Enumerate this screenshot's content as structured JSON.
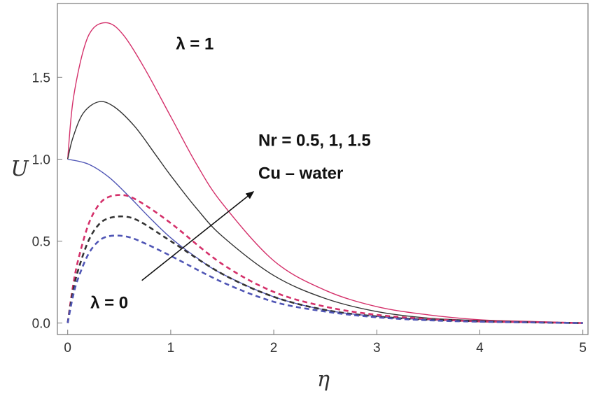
{
  "chart_data": {
    "type": "line",
    "xlabel": "η",
    "ylabel": "U",
    "xlim": [
      -0.1,
      5.05
    ],
    "ylim": [
      -0.07,
      1.95
    ],
    "x_ticks": [
      0,
      1,
      2,
      3,
      4,
      5
    ],
    "x_tick_labels": [
      "0",
      "1",
      "2",
      "3",
      "4",
      "5"
    ],
    "y_ticks": [
      0.0,
      0.5,
      1.0,
      1.5
    ],
    "y_tick_labels": [
      "0.0",
      "0.5",
      "1.0",
      "1.5"
    ],
    "grid": false,
    "colors": {
      "pink": "#d4306a",
      "black": "#333333",
      "blue": "#4f55b5"
    },
    "series": [
      {
        "style": "solid",
        "color": "#d4306a",
        "x": [
          0,
          0.05,
          0.15,
          0.25,
          0.4,
          0.55,
          0.75,
          1,
          1.25,
          1.5,
          2,
          2.5,
          3,
          3.5,
          4,
          4.5,
          5
        ],
        "values": [
          1.0,
          1.35,
          1.66,
          1.8,
          1.83,
          1.75,
          1.55,
          1.26,
          0.97,
          0.73,
          0.38,
          0.2,
          0.1,
          0.05,
          0.02,
          0.01,
          0.0
        ]
      },
      {
        "style": "solid",
        "color": "#333333",
        "x": [
          0,
          0.05,
          0.15,
          0.3,
          0.45,
          0.65,
          0.85,
          1,
          1.25,
          1.5,
          2,
          2.5,
          3,
          3.5,
          4,
          4.5,
          5
        ],
        "values": [
          1.0,
          1.13,
          1.28,
          1.35,
          1.32,
          1.2,
          1.03,
          0.9,
          0.7,
          0.53,
          0.29,
          0.15,
          0.07,
          0.03,
          0.015,
          0.007,
          0.0
        ]
      },
      {
        "style": "solid",
        "color": "#4f55b5",
        "x": [
          0,
          0.2,
          0.4,
          0.6,
          0.8,
          1,
          1.25,
          1.5,
          2,
          2.5,
          3,
          3.5,
          4,
          4.5,
          5
        ],
        "values": [
          1.0,
          0.97,
          0.89,
          0.77,
          0.64,
          0.52,
          0.4,
          0.3,
          0.16,
          0.08,
          0.04,
          0.02,
          0.01,
          0.005,
          0.0
        ]
      },
      {
        "style": "dashed",
        "color": "#d4306a",
        "x": [
          0,
          0.05,
          0.1,
          0.2,
          0.3,
          0.4,
          0.55,
          0.7,
          1,
          1.5,
          2,
          2.5,
          3,
          3.5,
          4,
          4.5,
          5
        ],
        "values": [
          0.0,
          0.22,
          0.38,
          0.6,
          0.72,
          0.77,
          0.78,
          0.74,
          0.61,
          0.36,
          0.19,
          0.1,
          0.05,
          0.025,
          0.01,
          0.005,
          0.0
        ]
      },
      {
        "style": "dashed",
        "color": "#333333",
        "x": [
          0,
          0.05,
          0.1,
          0.2,
          0.3,
          0.4,
          0.55,
          0.7,
          1,
          1.5,
          2,
          2.5,
          3,
          3.5,
          4,
          4.5,
          5
        ],
        "values": [
          0.0,
          0.19,
          0.32,
          0.5,
          0.6,
          0.64,
          0.65,
          0.62,
          0.5,
          0.3,
          0.16,
          0.08,
          0.04,
          0.02,
          0.01,
          0.004,
          0.0
        ]
      },
      {
        "style": "dashed",
        "color": "#4f55b5",
        "x": [
          0,
          0.05,
          0.1,
          0.2,
          0.3,
          0.4,
          0.55,
          0.7,
          1,
          1.5,
          2,
          2.5,
          3,
          3.5,
          4,
          4.5,
          5
        ],
        "values": [
          0.0,
          0.16,
          0.27,
          0.42,
          0.5,
          0.53,
          0.53,
          0.5,
          0.41,
          0.25,
          0.13,
          0.07,
          0.035,
          0.017,
          0.008,
          0.004,
          0.0
        ]
      }
    ],
    "annotations": [
      {
        "text": "λ = 1",
        "x": 1.05,
        "y": 1.67
      },
      {
        "text": "Nr = 0.5, 1, 1.5",
        "x": 1.85,
        "y": 1.08
      },
      {
        "text": "Cu – water",
        "x": 1.85,
        "y": 0.88
      },
      {
        "text": "λ = 0",
        "x": 0.22,
        "y": 0.09
      }
    ],
    "arrow": {
      "from": [
        0.72,
        0.26
      ],
      "to": [
        1.8,
        0.8
      ]
    }
  }
}
